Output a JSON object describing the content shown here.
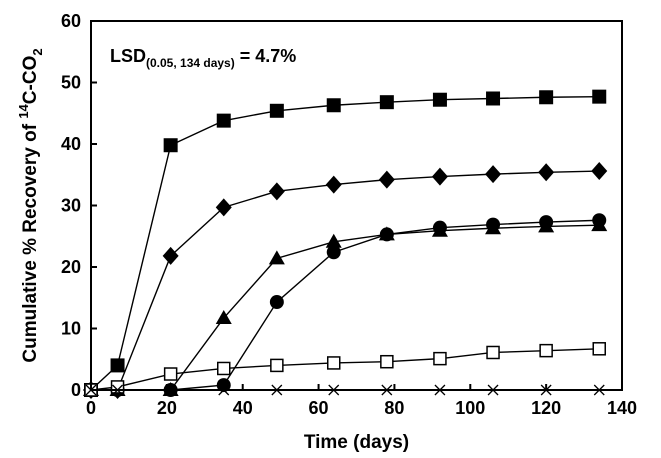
{
  "chart_data": {
    "type": "line",
    "xlabel": "Time (days)",
    "ylabel": {
      "prefix": "Cumulative % Recovery of ",
      "sup": "14",
      "middle": "C-CO",
      "sub": "2"
    },
    "annotation": {
      "main": "LSD",
      "sub": "(0.05, 134 days)",
      "rest": " = 4.7%"
    },
    "xlim": [
      0,
      140
    ],
    "ylim": [
      0,
      60
    ],
    "x_ticks": [
      "0",
      "20",
      "40",
      "60",
      "80",
      "100",
      "120",
      "140"
    ],
    "y_ticks": [
      "0",
      "10",
      "20",
      "30",
      "40",
      "50",
      "60"
    ],
    "legend": "none",
    "grid": false,
    "series": [
      {
        "marker": "filled-square",
        "x": [
          0,
          7,
          21,
          35,
          49,
          64,
          78,
          92,
          106,
          120,
          134
        ],
        "y": [
          0,
          4.0,
          39.8,
          43.8,
          45.4,
          46.3,
          46.8,
          47.2,
          47.4,
          47.6,
          47.7
        ]
      },
      {
        "marker": "filled-diamond",
        "x": [
          0,
          7,
          21,
          35,
          49,
          64,
          78,
          92,
          106,
          120,
          134
        ],
        "y": [
          0,
          0,
          21.8,
          29.7,
          32.3,
          33.4,
          34.2,
          34.7,
          35.1,
          35.4,
          35.6
        ]
      },
      {
        "marker": "filled-triangle",
        "x": [
          0,
          7,
          21,
          35,
          49,
          64,
          78,
          92,
          106,
          120,
          134
        ],
        "y": [
          0,
          0,
          0,
          11.7,
          21.4,
          24.1,
          25.3,
          25.9,
          26.3,
          26.6,
          26.8
        ]
      },
      {
        "marker": "filled-circle",
        "x": [
          0,
          7,
          21,
          35,
          49,
          64,
          78,
          92,
          106,
          120,
          134
        ],
        "y": [
          0,
          0,
          0,
          0.8,
          14.3,
          22.4,
          25.3,
          26.4,
          26.9,
          27.3,
          27.6
        ]
      },
      {
        "marker": "open-square",
        "x": [
          0,
          7,
          21,
          35,
          49,
          64,
          78,
          92,
          106,
          120,
          134
        ],
        "y": [
          0,
          0.5,
          2.6,
          3.5,
          4.0,
          4.4,
          4.6,
          5.1,
          6.1,
          6.4,
          6.7
        ]
      },
      {
        "marker": "x",
        "x": [
          0,
          7,
          21,
          35,
          49,
          64,
          78,
          92,
          106,
          120,
          134
        ],
        "y": [
          0,
          0,
          0,
          0,
          0,
          0,
          0,
          0,
          0,
          0,
          0
        ]
      }
    ]
  }
}
